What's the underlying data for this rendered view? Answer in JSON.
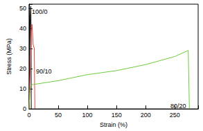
{
  "chart_data": {
    "type": "line",
    "xlabel": "Strain (%)",
    "ylabel": "Stress (MPa)",
    "xlim": [
      0,
      290
    ],
    "xticks": [
      0,
      50,
      100,
      150,
      200,
      250
    ],
    "ylim": [
      0,
      52
    ],
    "yticks": [
      0,
      10,
      20,
      30,
      40,
      50
    ],
    "grid": false,
    "marker": "none",
    "series": [
      {
        "name": "100/0",
        "color": "#000000",
        "x": [
          0,
          1,
          2,
          3,
          3.5,
          3.8
        ],
        "values": [
          0,
          25,
          45,
          51,
          40,
          0
        ]
      },
      {
        "name": "90/10",
        "color": "#e8413a",
        "x": [
          0,
          2,
          4,
          5,
          6,
          7,
          9,
          10
        ],
        "values": [
          0,
          20,
          40,
          42,
          38,
          32,
          30,
          0
        ]
      },
      {
        "name": "80/20",
        "color": "#6ccc3c",
        "x": [
          0,
          2,
          5,
          50,
          100,
          150,
          200,
          250,
          273,
          275
        ],
        "values": [
          0,
          11,
          12,
          14,
          17,
          19,
          22,
          26,
          29,
          0
        ]
      }
    ]
  }
}
